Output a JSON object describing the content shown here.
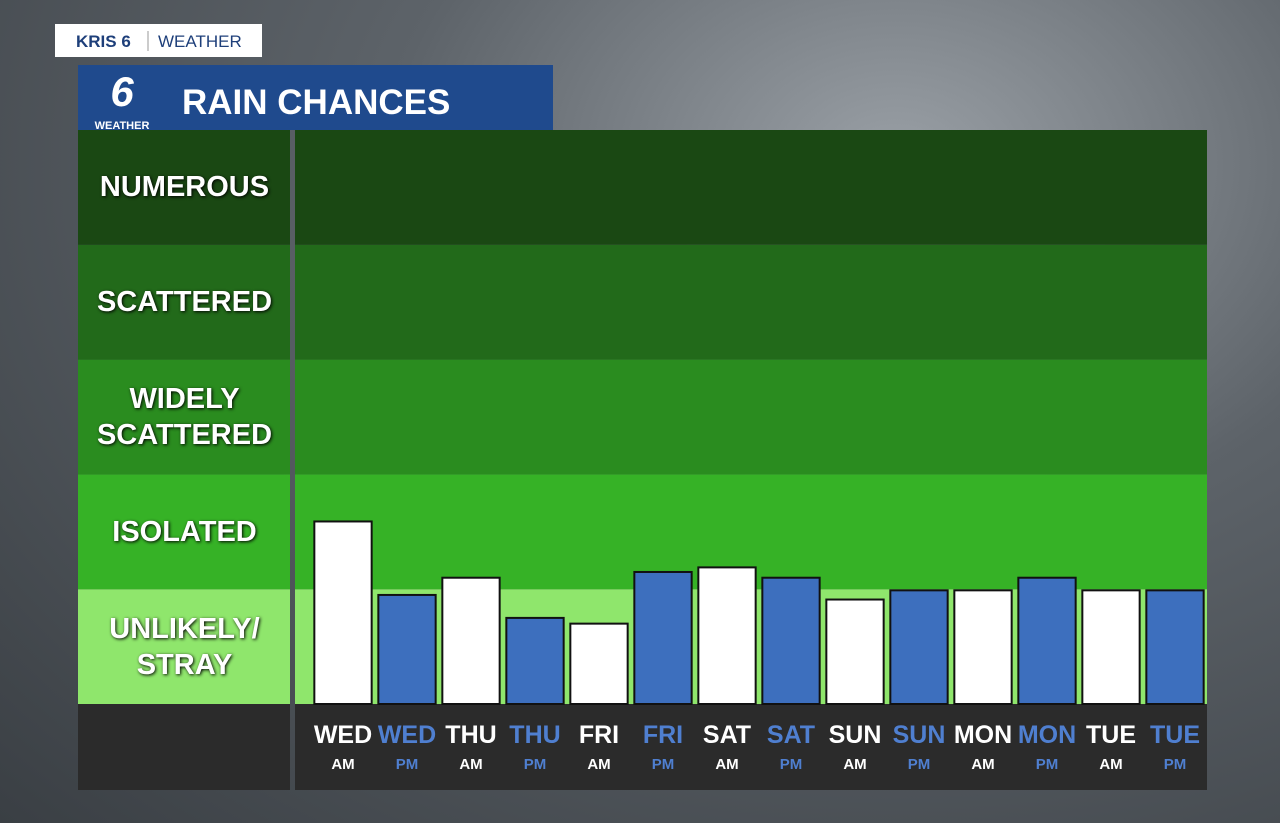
{
  "header": {
    "station": "KRIS 6",
    "section": "WEATHER",
    "logo_number": "6",
    "logo_text": "WEATHER"
  },
  "chart_data": {
    "type": "bar",
    "title": "RAIN CHANCES",
    "categories": [
      "WED",
      "WED",
      "THU",
      "THU",
      "FRI",
      "FRI",
      "SAT",
      "SAT",
      "SUN",
      "SUN",
      "MON",
      "MON",
      "TUE",
      "TUE"
    ],
    "periods": [
      "AM",
      "PM",
      "AM",
      "PM",
      "AM",
      "PM",
      "AM",
      "PM",
      "AM",
      "PM",
      "AM",
      "PM",
      "AM",
      "PM"
    ],
    "values": [
      1.59,
      0.95,
      1.1,
      0.75,
      0.7,
      1.15,
      1.19,
      1.1,
      0.91,
      0.99,
      0.99,
      1.1,
      0.99,
      0.99
    ],
    "colors": [
      "#ffffff",
      "#3d6fbe",
      "#ffffff",
      "#3d6fbe",
      "#ffffff",
      "#3d6fbe",
      "#ffffff",
      "#3d6fbe",
      "#ffffff",
      "#3d6fbe",
      "#ffffff",
      "#3d6fbe",
      "#ffffff",
      "#3d6fbe"
    ],
    "label_colors": [
      "#ffffff",
      "#4f7fd0",
      "#ffffff",
      "#4f7fd0",
      "#ffffff",
      "#4f7fd0",
      "#ffffff",
      "#4f7fd0",
      "#ffffff",
      "#4f7fd0",
      "#ffffff",
      "#4f7fd0",
      "#ffffff",
      "#4f7fd0"
    ],
    "ylim": [
      0,
      5
    ],
    "yticks": [
      {
        "value": 0.5,
        "label": "UNLIKELY/ STRAY"
      },
      {
        "value": 1.5,
        "label": "ISOLATED"
      },
      {
        "value": 2.5,
        "label": "WIDELY SCATTERED"
      },
      {
        "value": 3.5,
        "label": "SCATTERED"
      },
      {
        "value": 4.5,
        "label": "NUMEROUS"
      }
    ],
    "band_colors": [
      "#8fe66c",
      "#36b226",
      "#2a8c1f",
      "#226a1a",
      "#1a4813"
    ]
  }
}
